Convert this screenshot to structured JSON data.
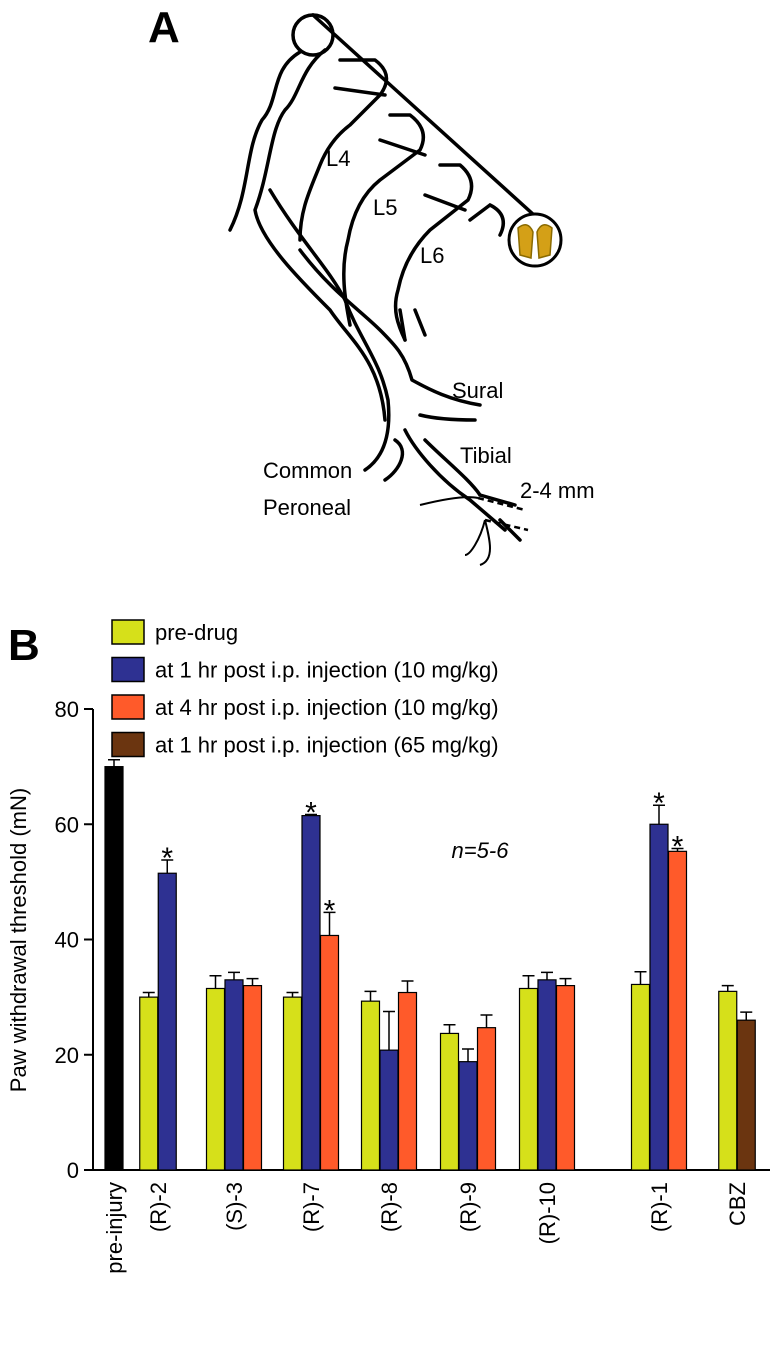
{
  "panel_labels": [
    "A",
    "B"
  ],
  "diagram": {
    "labels": [
      "L4",
      "L5",
      "L6",
      "Sural",
      "Tibial",
      "Common",
      "Peroneal",
      "2-4 mm"
    ]
  },
  "chart_data": {
    "type": "bar",
    "ylabel": "Paw withdrawal threshold (mN)",
    "annotation": "n=5-6",
    "categories": [
      "pre-injury",
      "(R)-2",
      "(S)-3",
      "(R)-7",
      "(R)-8",
      "(R)-9",
      "(R)-10",
      "(R)-1",
      "CBZ"
    ],
    "series": [
      {
        "color": "#000000",
        "values": [
          70,
          null,
          null,
          null,
          null,
          null,
          null,
          null,
          null
        ],
        "errors": [
          1.2,
          null,
          null,
          null,
          null,
          null,
          null,
          null,
          null
        ]
      },
      {
        "name": "pre-drug",
        "color": "#d6e01a",
        "values": [
          null,
          30,
          31.5,
          30,
          29.3,
          23.7,
          31.5,
          32.2,
          31
        ],
        "errors": [
          null,
          0.8,
          2.2,
          0.8,
          1.7,
          1.5,
          2.2,
          2.2,
          1
        ]
      },
      {
        "name": "at 1 hr post i.p. injection (10 mg/kg)",
        "color": "#2e3192",
        "values": [
          null,
          51.5,
          33,
          61.5,
          20.8,
          18.8,
          33,
          60,
          null
        ],
        "errors": [
          null,
          2.3,
          1.3,
          0.2,
          6.7,
          2.2,
          1.3,
          3.3,
          null
        ],
        "significance": [
          null,
          "*",
          null,
          "*",
          null,
          null,
          null,
          "*",
          null
        ]
      },
      {
        "name": "at 4 hr post i.p. injection (10 mg/kg)",
        "color": "#ff5a2a",
        "values": [
          null,
          null,
          32,
          40.7,
          30.8,
          24.7,
          32,
          55.3,
          null
        ],
        "errors": [
          null,
          null,
          1.2,
          4,
          2,
          2.2,
          1.2,
          0.5,
          null
        ],
        "significance": [
          null,
          null,
          null,
          "*",
          null,
          null,
          null,
          "*",
          null
        ]
      },
      {
        "name": "at 1 hr post i.p. injection (65 mg/kg)",
        "color": "#6b3510",
        "values": [
          null,
          null,
          null,
          null,
          null,
          null,
          null,
          null,
          26
        ],
        "errors": [
          null,
          null,
          null,
          null,
          null,
          null,
          null,
          null,
          1.4
        ]
      }
    ],
    "ylim": [
      0,
      80
    ],
    "yticks": [
      0,
      20,
      40,
      60,
      80
    ]
  }
}
